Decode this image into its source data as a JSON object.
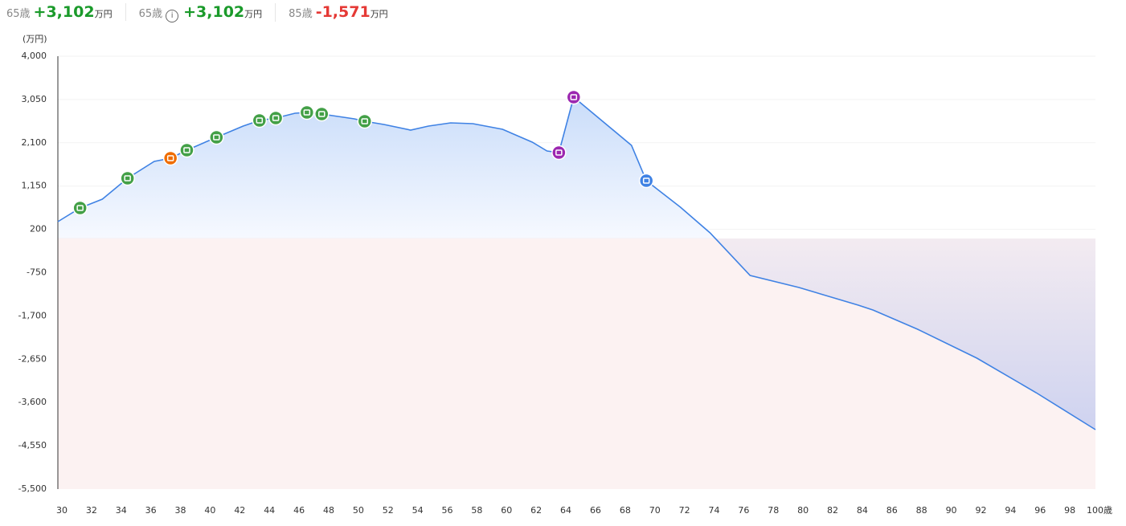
{
  "summary": [
    {
      "label": "65歳",
      "value": "+3,102",
      "unit": "万円",
      "color": "#1a9a2a"
    },
    {
      "label": "65歳",
      "value": "+3,102",
      "unit": "万円",
      "color": "#1a9a2a",
      "info": "i"
    },
    {
      "label": "85歳",
      "value": "-1,571",
      "unit": "万円",
      "color": "#e53935"
    }
  ],
  "chart_data": {
    "type": "area",
    "y_unit_label": "(万円)",
    "x": [
      30,
      31.5,
      33,
      34.7,
      36.5,
      37.6,
      38.7,
      40.7,
      42.5,
      43.6,
      44.7,
      46,
      46.8,
      47.8,
      50,
      50.7,
      52,
      53.8,
      55,
      56.5,
      58,
      60,
      62,
      63,
      63.8,
      64.8,
      68.7,
      69.7,
      72,
      74,
      76.7,
      80,
      84,
      85,
      88,
      92,
      96,
      100
    ],
    "series": [
      {
        "color": "#3f82e4",
        "values": [
          369,
          669,
          863,
          1321,
          1691,
          1762,
          1938,
          2220,
          2467,
          2590,
          2643,
          2749,
          2766,
          2731,
          2625,
          2572,
          2502,
          2378,
          2467,
          2537,
          2519,
          2396,
          2114,
          1920,
          1885,
          3101,
          2044,
          1268,
          686,
          122,
          -812,
          -1076,
          -1464,
          -1571,
          -1993,
          -2627,
          -3385,
          -4196
        ],
        "event_colors": [
          null,
          "#43a047",
          null,
          "#43a047",
          null,
          "#ef6c00",
          "#43a047",
          "#43a047",
          null,
          "#43a047",
          "#43a047",
          null,
          "#43a047",
          "#43a047",
          null,
          "#43a047",
          null,
          null,
          null,
          null,
          null,
          null,
          null,
          null,
          "#9c27b0",
          "#9c27b0",
          null,
          "#3f82e4",
          null,
          null,
          null,
          null,
          null,
          null,
          null,
          null,
          null,
          null
        ]
      }
    ],
    "xlim": [
      30,
      100
    ],
    "xticks": [
      30,
      32,
      34,
      36,
      38,
      40,
      42,
      44,
      46,
      48,
      50,
      52,
      54,
      56,
      58,
      60,
      62,
      64,
      66,
      68,
      70,
      72,
      74,
      76,
      78,
      80,
      82,
      84,
      86,
      88,
      90,
      92,
      94,
      96,
      98,
      {
        "value": 100,
        "label": "100歳"
      }
    ],
    "ylim": [
      -5500,
      4000
    ],
    "yticks": [
      {
        "value": 4000,
        "label": "4,000"
      },
      {
        "value": 3050,
        "label": "3,050"
      },
      {
        "value": 2100,
        "label": "2,100"
      },
      {
        "value": 1150,
        "label": "1,150"
      },
      200,
      -750,
      {
        "value": -1700,
        "label": "-1,700"
      },
      {
        "value": -2650,
        "label": "-2,650"
      },
      {
        "value": -3600,
        "label": "-3,600"
      },
      {
        "value": -4550,
        "label": "-4,550"
      },
      {
        "value": -5500,
        "label": "-5,500"
      }
    ],
    "grid": true
  }
}
